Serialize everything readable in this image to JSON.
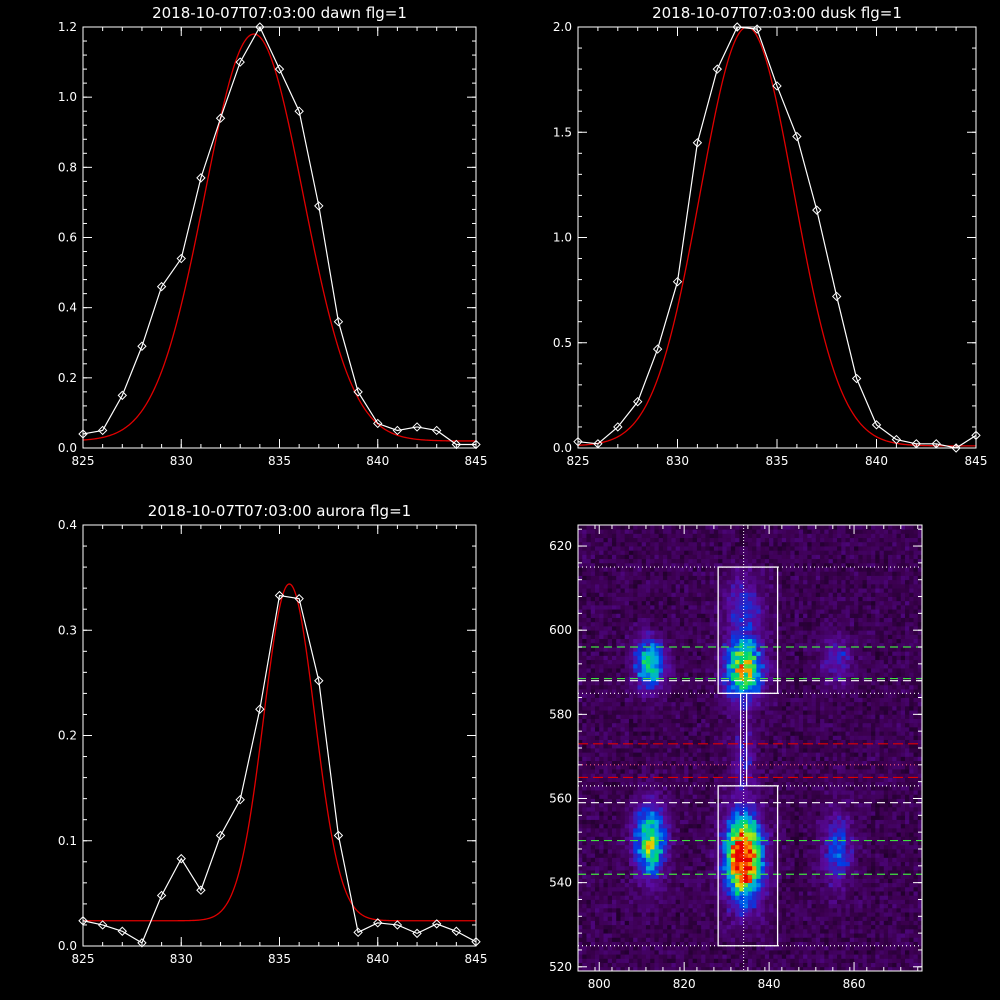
{
  "chart_data": [
    {
      "type": "line",
      "title": "2018-10-07T07:03:00 dawn flg=1",
      "xlim": [
        825,
        845
      ],
      "ylim": [
        0,
        1.2
      ],
      "xticks": [
        "825",
        "830",
        "835",
        "840",
        "845"
      ],
      "yticks": [
        "0.0",
        "0.2",
        "0.4",
        "0.6",
        "0.8",
        "1.0",
        "1.2"
      ],
      "x": [
        825,
        826,
        827,
        828,
        829,
        830,
        831,
        832,
        833,
        834,
        835,
        836,
        837,
        838,
        839,
        840,
        841,
        842,
        843,
        844,
        845
      ],
      "series": [
        {
          "style": "white-line-diamonds",
          "color": "#ffffff",
          "values": [
            0.04,
            0.05,
            0.15,
            0.29,
            0.46,
            0.54,
            0.77,
            0.94,
            1.1,
            1.2,
            1.08,
            0.96,
            0.69,
            0.36,
            0.16,
            0.07,
            0.05,
            0.06,
            0.05,
            0.01,
            0.01
          ]
        },
        {
          "style": "red-fit",
          "color": "#e00000",
          "gaussian": {
            "amp": 1.16,
            "center": 833.7,
            "sigma": 2.5,
            "base": 0.02
          }
        }
      ]
    },
    {
      "type": "line",
      "title": "2018-10-07T07:03:00 dusk flg=1",
      "xlim": [
        825,
        845
      ],
      "ylim": [
        0,
        2.0
      ],
      "xticks": [
        "825",
        "830",
        "835",
        "840",
        "845"
      ],
      "yticks": [
        "0.0",
        "0.5",
        "1.0",
        "1.5",
        "2.0"
      ],
      "x": [
        825,
        826,
        827,
        828,
        829,
        830,
        831,
        832,
        833,
        834,
        835,
        836,
        837,
        838,
        839,
        840,
        841,
        842,
        843,
        844,
        845
      ],
      "series": [
        {
          "style": "white-line-diamonds",
          "color": "#ffffff",
          "values": [
            0.03,
            0.02,
            0.1,
            0.22,
            0.47,
            0.79,
            1.45,
            1.8,
            2.0,
            1.99,
            1.72,
            1.48,
            1.13,
            0.72,
            0.33,
            0.11,
            0.04,
            0.02,
            0.02,
            0.0,
            0.06
          ]
        },
        {
          "style": "red-fit",
          "color": "#e00000",
          "gaussian": {
            "amp": 1.99,
            "center": 833.5,
            "sigma": 2.35,
            "base": 0.01
          }
        }
      ]
    },
    {
      "type": "line",
      "title": "2018-10-07T07:03:00 aurora flg=1",
      "xlim": [
        825,
        845
      ],
      "ylim": [
        0,
        0.4
      ],
      "xticks": [
        "825",
        "830",
        "835",
        "840",
        "845"
      ],
      "yticks": [
        "0.0",
        "0.1",
        "0.2",
        "0.3",
        "0.4"
      ],
      "x": [
        825,
        826,
        827,
        828,
        829,
        830,
        831,
        832,
        833,
        834,
        835,
        836,
        837,
        838,
        839,
        840,
        841,
        842,
        843,
        844,
        845
      ],
      "series": [
        {
          "style": "white-line-diamonds",
          "color": "#ffffff",
          "values": [
            0.024,
            0.02,
            0.014,
            0.003,
            0.048,
            0.083,
            0.053,
            0.105,
            0.139,
            0.225,
            0.333,
            0.33,
            0.252,
            0.105,
            0.013,
            0.022,
            0.02,
            0.012,
            0.021,
            0.014,
            0.004
          ]
        },
        {
          "style": "red-fit",
          "color": "#e00000",
          "gaussian": {
            "amp": 0.32,
            "center": 835.5,
            "sigma": 1.3,
            "base": 0.024
          }
        }
      ]
    },
    {
      "type": "heatmap",
      "title": "",
      "xlim": [
        795,
        876
      ],
      "ylim": [
        519,
        625
      ],
      "xticks": [
        "800",
        "820",
        "840",
        "860"
      ],
      "yticks": [
        "520",
        "540",
        "560",
        "580",
        "600",
        "620"
      ],
      "blobs": [
        {
          "x": 812,
          "y": 550,
          "amp": 0.62,
          "sx": 2.5,
          "sy": 6
        },
        {
          "x": 812,
          "y": 592,
          "amp": 0.55,
          "sx": 2.5,
          "sy": 4
        },
        {
          "x": 834,
          "y": 546,
          "amp": 1.0,
          "sx": 3,
          "sy": 7
        },
        {
          "x": 834,
          "y": 591,
          "amp": 0.7,
          "sx": 3,
          "sy": 5
        },
        {
          "x": 834,
          "y": 606,
          "amp": 0.25,
          "sx": 3,
          "sy": 5
        },
        {
          "x": 834,
          "y": 570,
          "amp": 0.18,
          "sx": 2,
          "sy": 6
        },
        {
          "x": 856,
          "y": 548,
          "amp": 0.3,
          "sx": 2.5,
          "sy": 6
        },
        {
          "x": 856,
          "y": 593,
          "amp": 0.22,
          "sx": 2.5,
          "sy": 4
        }
      ],
      "boxes": [
        {
          "x0": 828,
          "x1": 842,
          "y0": 585,
          "y1": 615
        },
        {
          "x0": 828,
          "x1": 842,
          "y0": 525,
          "y1": 563
        }
      ],
      "vline_x": 834,
      "white_dotted_y": [
        615,
        585,
        563,
        525
      ],
      "green_dashed_y": [
        596,
        588.5,
        550,
        542
      ],
      "white_dashed_y": [
        588,
        559
      ],
      "red_dashed_y": [
        573,
        565
      ],
      "pink_dotted_y": [
        568
      ]
    }
  ]
}
